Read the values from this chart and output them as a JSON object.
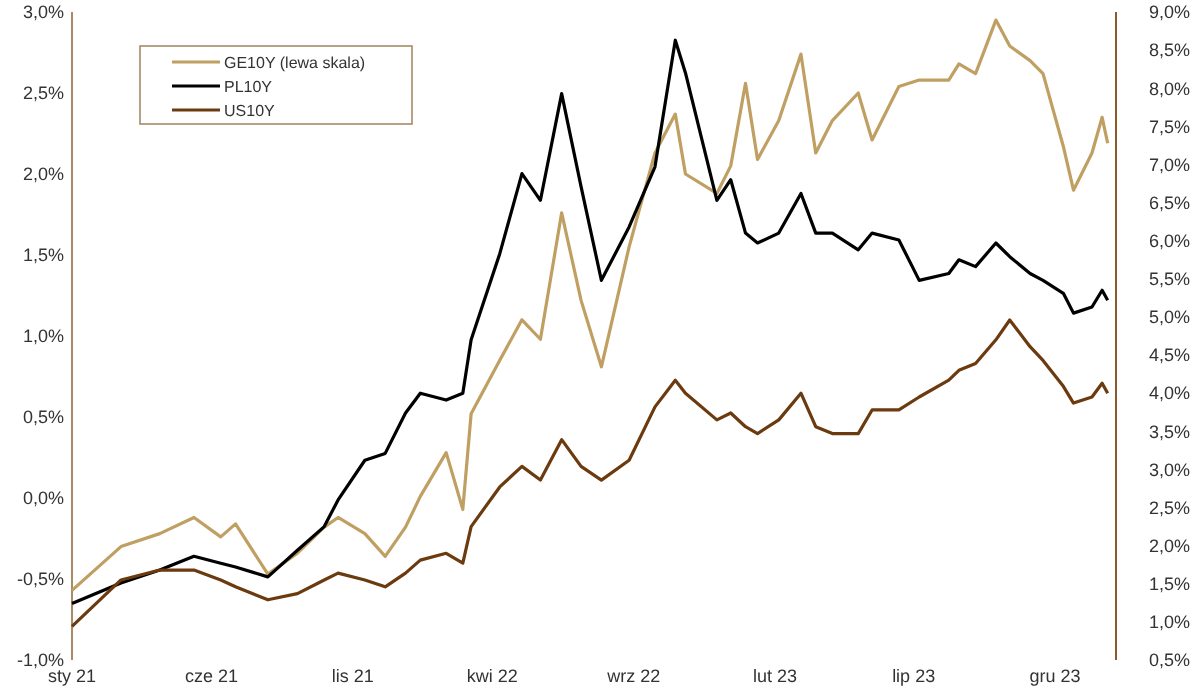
{
  "chart_data": {
    "type": "line",
    "legend": "top left",
    "grid": false,
    "x": [
      "2021-01-01",
      "2021-02-23",
      "2021-04-06",
      "2021-05-13",
      "2021-06-11",
      "2021-06-27",
      "2021-08-01",
      "2021-09-02",
      "2021-10-01",
      "2021-10-16",
      "2021-11-14",
      "2021-12-06",
      "2021-12-28",
      "2022-01-13",
      "2022-02-10",
      "2022-02-28",
      "2022-03-09",
      "2022-04-09",
      "2022-05-03",
      "2022-05-23",
      "2022-06-15",
      "2022-07-06",
      "2022-07-28",
      "2022-08-27",
      "2022-09-24",
      "2022-10-16",
      "2022-10-27",
      "2022-11-30",
      "2022-12-15",
      "2022-12-31",
      "2023-01-13",
      "2023-02-05",
      "2023-03-01",
      "2023-03-17",
      "2023-04-04",
      "2023-05-02",
      "2023-05-17",
      "2023-06-15",
      "2023-07-07",
      "2023-08-08",
      "2023-08-19",
      "2023-09-06",
      "2023-09-28",
      "2023-10-13",
      "2023-11-04",
      "2023-11-18",
      "2023-12-10",
      "2023-12-21",
      "2024-01-10",
      "2024-01-21",
      "2024-01-27"
    ],
    "xlim": [
      "2021-01-01",
      "2024-02-05"
    ],
    "xticks": [
      {
        "value": "2021-01-01",
        "label": "sty 21"
      },
      {
        "value": "2021-06-01",
        "label": "cze 21"
      },
      {
        "value": "2021-11-01",
        "label": "lis 21"
      },
      {
        "value": "2022-04-01",
        "label": "kwi 22"
      },
      {
        "value": "2022-09-01",
        "label": "wrz 22"
      },
      {
        "value": "2023-02-01",
        "label": "lut 23"
      },
      {
        "value": "2023-07-01",
        "label": "lip 23"
      },
      {
        "value": "2023-12-01",
        "label": "gru 23"
      }
    ],
    "ylim": [
      -1,
      3
    ],
    "yticks": [
      {
        "value": -1,
        "label": "-1,0%"
      },
      {
        "value": -0.5,
        "label": "-0,5%"
      },
      {
        "value": 0,
        "label": "0,0%"
      },
      {
        "value": 0.5,
        "label": "0,5%"
      },
      {
        "value": 1,
        "label": "1,0%"
      },
      {
        "value": 1.5,
        "label": "1,5%"
      },
      {
        "value": 2,
        "label": "2,0%"
      },
      {
        "value": 2.5,
        "label": "2,5%"
      },
      {
        "value": 3,
        "label": "3,0%"
      }
    ],
    "y2lim": [
      0.5,
      9
    ],
    "y2ticks": [
      {
        "value": 0.5,
        "label": "0,5%"
      },
      {
        "value": 1,
        "label": "1,0%"
      },
      {
        "value": 1.5,
        "label": "1,5%"
      },
      {
        "value": 2,
        "label": "2,0%"
      },
      {
        "value": 2.5,
        "label": "2,5%"
      },
      {
        "value": 3,
        "label": "3,0%"
      },
      {
        "value": 3.5,
        "label": "3,5%"
      },
      {
        "value": 4,
        "label": "4,0%"
      },
      {
        "value": 4.5,
        "label": "4,5%"
      },
      {
        "value": 5,
        "label": "5,0%"
      },
      {
        "value": 5.5,
        "label": "5,5%"
      },
      {
        "value": 6,
        "label": "6,0%"
      },
      {
        "value": 6.5,
        "label": "6,5%"
      },
      {
        "value": 7,
        "label": "7,0%"
      },
      {
        "value": 7.5,
        "label": "7,5%"
      },
      {
        "value": 8,
        "label": "8,0%"
      },
      {
        "value": 8.5,
        "label": "8,5%"
      },
      {
        "value": 9,
        "label": "9,0%"
      }
    ],
    "series": [
      {
        "name": "GE10Y (lewa skala)",
        "color": "#bf9f62",
        "values": [
          -0.57,
          -0.3,
          -0.22,
          -0.12,
          -0.24,
          -0.16,
          -0.47,
          -0.34,
          -0.18,
          -0.12,
          -0.22,
          -0.36,
          -0.18,
          0.01,
          0.28,
          -0.07,
          0.52,
          0.85,
          1.1,
          0.98,
          1.76,
          1.22,
          0.81,
          1.55,
          2.13,
          2.37,
          2.0,
          1.88,
          2.05,
          2.56,
          2.09,
          2.33,
          2.74,
          2.13,
          2.33,
          2.5,
          2.21,
          2.54,
          2.58,
          2.58,
          2.68,
          2.62,
          2.95,
          2.79,
          2.7,
          2.62,
          2.17,
          1.9,
          2.13,
          2.35,
          2.19
        ]
      },
      {
        "name": "PL10Y",
        "color": "#000000",
        "axis": "y2",
        "values": [
          1.24,
          1.51,
          1.68,
          1.86,
          1.77,
          1.72,
          1.59,
          1.94,
          2.25,
          2.6,
          3.12,
          3.21,
          3.74,
          4.0,
          3.91,
          4.0,
          4.7,
          5.83,
          6.88,
          6.53,
          7.93,
          6.71,
          5.48,
          6.18,
          6.97,
          8.63,
          8.2,
          6.53,
          6.8,
          6.1,
          5.97,
          6.1,
          6.62,
          6.1,
          6.1,
          5.88,
          6.1,
          6.01,
          5.48,
          5.57,
          5.75,
          5.66,
          5.97,
          5.79,
          5.57,
          5.48,
          5.31,
          5.05,
          5.13,
          5.35,
          5.22
        ]
      },
      {
        "name": "US10Y",
        "color": "#6b3a0e",
        "axis": "y2",
        "values": [
          0.94,
          1.55,
          1.68,
          1.68,
          1.55,
          1.46,
          1.29,
          1.37,
          1.55,
          1.64,
          1.55,
          1.46,
          1.64,
          1.81,
          1.9,
          1.77,
          2.25,
          2.77,
          3.04,
          2.86,
          3.39,
          3.04,
          2.86,
          3.12,
          3.82,
          4.17,
          4.0,
          3.65,
          3.74,
          3.56,
          3.47,
          3.65,
          4.0,
          3.56,
          3.47,
          3.47,
          3.78,
          3.78,
          3.95,
          4.17,
          4.3,
          4.39,
          4.7,
          4.96,
          4.61,
          4.43,
          4.09,
          3.87,
          3.95,
          4.13,
          4.0
        ]
      }
    ]
  }
}
